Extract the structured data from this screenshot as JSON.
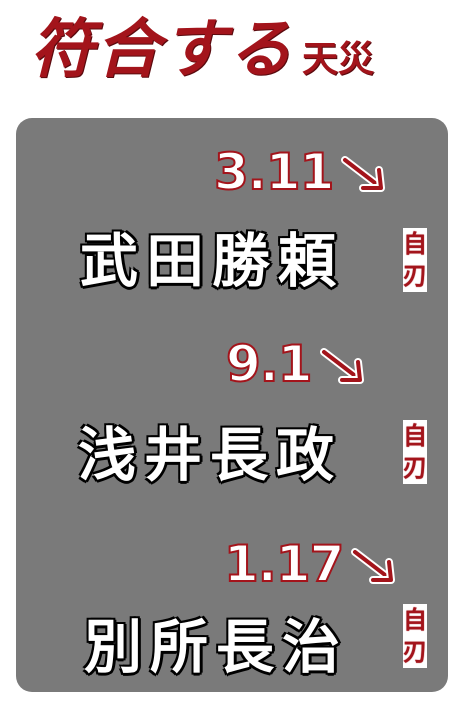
{
  "title": {
    "main": "符合する",
    "sub": "天災"
  },
  "entries": [
    {
      "date": "3.11",
      "name": "武田勝頼",
      "note": [
        "自",
        "刃"
      ]
    },
    {
      "date": "9.1",
      "name": "浅井長政",
      "note": [
        "自",
        "刃"
      ]
    },
    {
      "date": "1.17",
      "name": "別所長治",
      "note": [
        "自",
        "刃"
      ]
    }
  ],
  "colors": {
    "accent": "#a3141b",
    "panel": "#7a7a7a",
    "text": "#ffffff",
    "outline": "#000000"
  },
  "icons": [
    "arrow-down-right-icon"
  ]
}
